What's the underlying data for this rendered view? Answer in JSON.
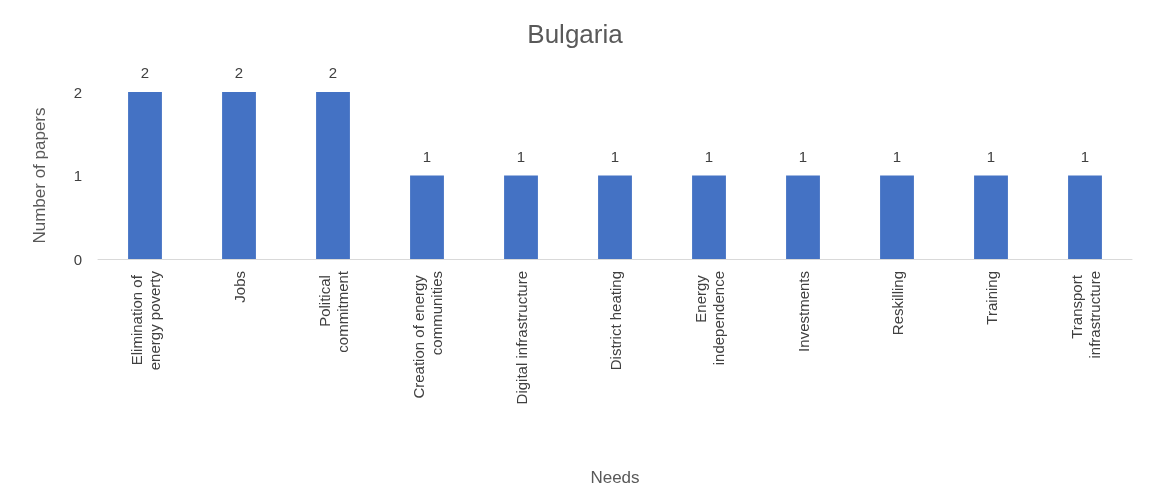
{
  "chart_data": {
    "type": "bar",
    "title": "Bulgaria",
    "xlabel": "Needs",
    "ylabel": "Number of papers",
    "categories": [
      "Elimination of energy poverty",
      "Jobs",
      "Political commitment",
      "Creation of energy communities",
      "Digital infrastructure",
      "District heating",
      "Energy independence",
      "Investments",
      "Reskilling",
      "Training",
      "Transport infrastructure"
    ],
    "values": [
      2,
      2,
      2,
      1,
      1,
      1,
      1,
      1,
      1,
      1,
      1
    ],
    "color": "#4472c4",
    "ylim": [
      0,
      2
    ],
    "yticks": [
      0,
      1,
      2
    ],
    "grid": false,
    "data_labels": true
  }
}
